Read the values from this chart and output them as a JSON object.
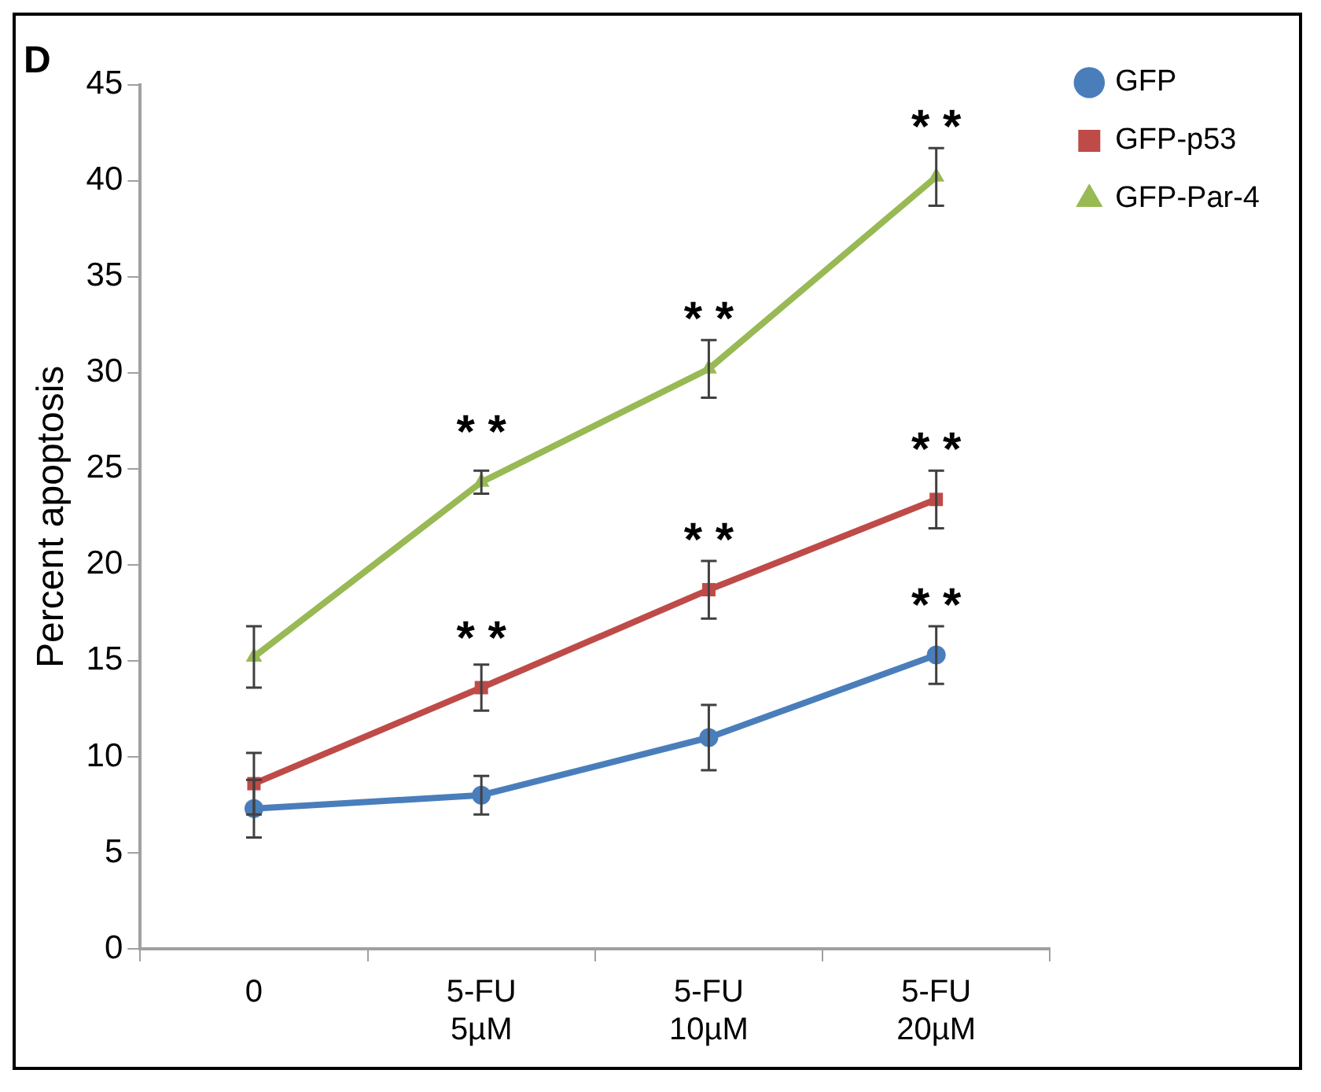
{
  "chart_data": {
    "type": "line",
    "title": "D",
    "ylabel": "Percent apoptosis",
    "categories": [
      "0",
      "5-FU\n5µM",
      "5-FU\n10µM",
      "5-FU\n20µM"
    ],
    "series": [
      {
        "name": "GFP",
        "color": "#4a7ebb",
        "marker": "circle",
        "values": [
          7.3,
          8.0,
          11.0,
          15.3
        ],
        "errors": [
          1.5,
          1.0,
          1.7,
          1.5
        ]
      },
      {
        "name": "GFP-p53",
        "color": "#be4b48",
        "marker": "square",
        "values": [
          8.6,
          13.6,
          18.7,
          23.4
        ],
        "errors": [
          1.6,
          1.2,
          1.5,
          1.5
        ]
      },
      {
        "name": "GFP-Par-4",
        "color": "#98b954",
        "marker": "triangle",
        "values": [
          15.2,
          24.3,
          30.2,
          40.2
        ],
        "errors": [
          1.6,
          0.6,
          1.5,
          1.5
        ]
      }
    ],
    "annotations": [
      {
        "text": "* *",
        "x": "5-FU\n5µM",
        "y": 24.3
      },
      {
        "text": "* *",
        "x": "5-FU\n5µM",
        "y": 13.6
      },
      {
        "text": "* *",
        "x": "5-FU\n10µM",
        "y": 30.2
      },
      {
        "text": "* *",
        "x": "5-FU\n10µM",
        "y": 18.7
      },
      {
        "text": "* *",
        "x": "5-FU\n20µM",
        "y": 40.2
      },
      {
        "text": "* *",
        "x": "5-FU\n20µM",
        "y": 23.4
      },
      {
        "text": "* *",
        "x": "5-FU\n20µM",
        "y": 15.3
      }
    ],
    "ylim": [
      0,
      45
    ],
    "yticks": [
      0,
      5,
      10,
      15,
      20,
      25,
      30,
      35,
      40,
      45
    ],
    "grid": false,
    "legend": "top right",
    "line_style": "solid"
  }
}
